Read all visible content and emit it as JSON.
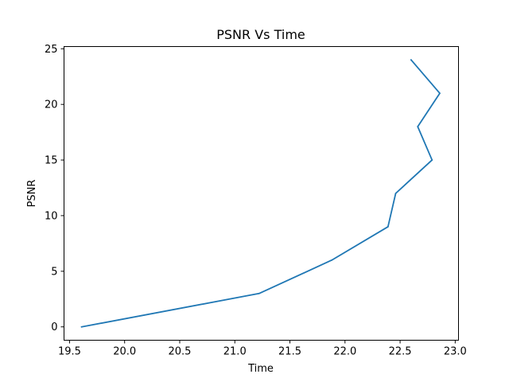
{
  "chart_data": {
    "type": "line",
    "title": "PSNR Vs Time",
    "xlabel": "Time",
    "ylabel": "PSNR",
    "xlim": [
      19.45,
      23.03
    ],
    "ylim": [
      -1.2,
      25.2
    ],
    "xticks": [
      19.5,
      20.0,
      20.5,
      21.0,
      21.5,
      22.0,
      22.5,
      23.0
    ],
    "xtick_labels": [
      "19.5",
      "20.0",
      "20.5",
      "21.0",
      "21.5",
      "22.0",
      "22.5",
      "23.0"
    ],
    "yticks": [
      0,
      5,
      10,
      15,
      20,
      25
    ],
    "ytick_labels": [
      "0",
      "5",
      "10",
      "15",
      "20",
      "25"
    ],
    "grid": false,
    "series": [
      {
        "color": "#1f77b4",
        "x": [
          19.61,
          21.22,
          21.88,
          22.39,
          22.46,
          22.79,
          22.66,
          22.86,
          22.6
        ],
        "y": [
          0,
          3,
          6,
          9,
          12,
          15,
          18,
          21,
          24
        ]
      }
    ]
  }
}
